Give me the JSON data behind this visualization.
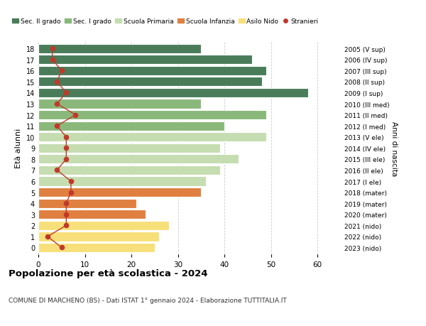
{
  "ages": [
    18,
    17,
    16,
    15,
    14,
    13,
    12,
    11,
    10,
    9,
    8,
    7,
    6,
    5,
    4,
    3,
    2,
    1,
    0
  ],
  "bar_values": [
    35,
    46,
    49,
    48,
    58,
    35,
    49,
    40,
    49,
    39,
    43,
    39,
    36,
    35,
    21,
    23,
    28,
    26,
    25
  ],
  "stranieri_values": [
    3,
    3,
    5,
    4,
    6,
    4,
    8,
    4,
    6,
    6,
    6,
    4,
    7,
    7,
    6,
    6,
    6,
    2,
    5
  ],
  "right_labels": [
    "2005 (V sup)",
    "2006 (IV sup)",
    "2007 (III sup)",
    "2008 (II sup)",
    "2009 (I sup)",
    "2010 (III med)",
    "2011 (II med)",
    "2012 (I med)",
    "2013 (V ele)",
    "2014 (IV ele)",
    "2015 (III ele)",
    "2016 (II ele)",
    "2017 (I ele)",
    "2018 (mater)",
    "2019 (mater)",
    "2020 (mater)",
    "2021 (nido)",
    "2022 (nido)",
    "2023 (nido)"
  ],
  "bar_colors": [
    "#4a7c59",
    "#4a7c59",
    "#4a7c59",
    "#4a7c59",
    "#4a7c59",
    "#8ab87a",
    "#8ab87a",
    "#8ab87a",
    "#c5ddb0",
    "#c5ddb0",
    "#c5ddb0",
    "#c5ddb0",
    "#c5ddb0",
    "#e08040",
    "#e08040",
    "#e08040",
    "#f7e07a",
    "#f7e07a",
    "#f7e07a"
  ],
  "legend_labels": [
    "Sec. II grado",
    "Sec. I grado",
    "Scuola Primaria",
    "Scuola Infanzia",
    "Asilo Nido",
    "Stranieri"
  ],
  "legend_colors": [
    "#4a7c59",
    "#8ab87a",
    "#c5ddb0",
    "#e08040",
    "#f7e07a",
    "#c0392b"
  ],
  "stranieri_color": "#c0392b",
  "ylabel": "Età alunni",
  "right_ylabel": "Anni di nascita",
  "title": "Popolazione per età scolastica - 2024",
  "subtitle": "COMUNE DI MARCHENO (BS) - Dati ISTAT 1° gennaio 2024 - Elaborazione TUTTITALIA.IT",
  "xlim": [
    0,
    65
  ],
  "xticks": [
    0,
    10,
    20,
    30,
    40,
    50,
    60
  ],
  "background_color": "#ffffff",
  "grid_color": "#cccccc"
}
